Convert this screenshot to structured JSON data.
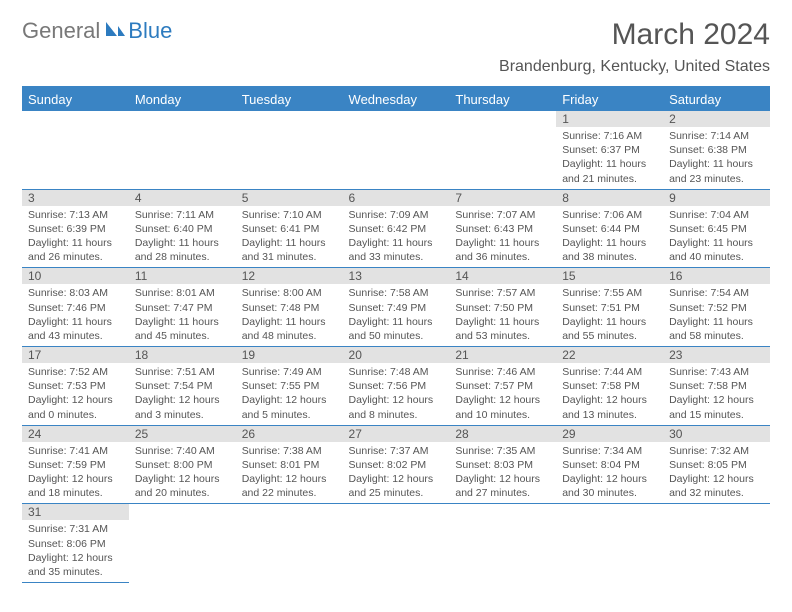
{
  "logo": {
    "text1": "General",
    "text2": "Blue"
  },
  "title": "March 2024",
  "location": "Brandenburg, Kentucky, United States",
  "colors": {
    "header_bg": "#3a84c4",
    "header_text": "#ffffff",
    "daynum_bg": "#e2e2e2",
    "body_text": "#555555",
    "rule": "#3a84c4"
  },
  "weekdays": [
    "Sunday",
    "Monday",
    "Tuesday",
    "Wednesday",
    "Thursday",
    "Friday",
    "Saturday"
  ],
  "weeks": [
    [
      null,
      null,
      null,
      null,
      null,
      {
        "n": "1",
        "l1": "Sunrise: 7:16 AM",
        "l2": "Sunset: 6:37 PM",
        "l3": "Daylight: 11 hours",
        "l4": "and 21 minutes."
      },
      {
        "n": "2",
        "l1": "Sunrise: 7:14 AM",
        "l2": "Sunset: 6:38 PM",
        "l3": "Daylight: 11 hours",
        "l4": "and 23 minutes."
      }
    ],
    [
      {
        "n": "3",
        "l1": "Sunrise: 7:13 AM",
        "l2": "Sunset: 6:39 PM",
        "l3": "Daylight: 11 hours",
        "l4": "and 26 minutes."
      },
      {
        "n": "4",
        "l1": "Sunrise: 7:11 AM",
        "l2": "Sunset: 6:40 PM",
        "l3": "Daylight: 11 hours",
        "l4": "and 28 minutes."
      },
      {
        "n": "5",
        "l1": "Sunrise: 7:10 AM",
        "l2": "Sunset: 6:41 PM",
        "l3": "Daylight: 11 hours",
        "l4": "and 31 minutes."
      },
      {
        "n": "6",
        "l1": "Sunrise: 7:09 AM",
        "l2": "Sunset: 6:42 PM",
        "l3": "Daylight: 11 hours",
        "l4": "and 33 minutes."
      },
      {
        "n": "7",
        "l1": "Sunrise: 7:07 AM",
        "l2": "Sunset: 6:43 PM",
        "l3": "Daylight: 11 hours",
        "l4": "and 36 minutes."
      },
      {
        "n": "8",
        "l1": "Sunrise: 7:06 AM",
        "l2": "Sunset: 6:44 PM",
        "l3": "Daylight: 11 hours",
        "l4": "and 38 minutes."
      },
      {
        "n": "9",
        "l1": "Sunrise: 7:04 AM",
        "l2": "Sunset: 6:45 PM",
        "l3": "Daylight: 11 hours",
        "l4": "and 40 minutes."
      }
    ],
    [
      {
        "n": "10",
        "l1": "Sunrise: 8:03 AM",
        "l2": "Sunset: 7:46 PM",
        "l3": "Daylight: 11 hours",
        "l4": "and 43 minutes."
      },
      {
        "n": "11",
        "l1": "Sunrise: 8:01 AM",
        "l2": "Sunset: 7:47 PM",
        "l3": "Daylight: 11 hours",
        "l4": "and 45 minutes."
      },
      {
        "n": "12",
        "l1": "Sunrise: 8:00 AM",
        "l2": "Sunset: 7:48 PM",
        "l3": "Daylight: 11 hours",
        "l4": "and 48 minutes."
      },
      {
        "n": "13",
        "l1": "Sunrise: 7:58 AM",
        "l2": "Sunset: 7:49 PM",
        "l3": "Daylight: 11 hours",
        "l4": "and 50 minutes."
      },
      {
        "n": "14",
        "l1": "Sunrise: 7:57 AM",
        "l2": "Sunset: 7:50 PM",
        "l3": "Daylight: 11 hours",
        "l4": "and 53 minutes."
      },
      {
        "n": "15",
        "l1": "Sunrise: 7:55 AM",
        "l2": "Sunset: 7:51 PM",
        "l3": "Daylight: 11 hours",
        "l4": "and 55 minutes."
      },
      {
        "n": "16",
        "l1": "Sunrise: 7:54 AM",
        "l2": "Sunset: 7:52 PM",
        "l3": "Daylight: 11 hours",
        "l4": "and 58 minutes."
      }
    ],
    [
      {
        "n": "17",
        "l1": "Sunrise: 7:52 AM",
        "l2": "Sunset: 7:53 PM",
        "l3": "Daylight: 12 hours",
        "l4": "and 0 minutes."
      },
      {
        "n": "18",
        "l1": "Sunrise: 7:51 AM",
        "l2": "Sunset: 7:54 PM",
        "l3": "Daylight: 12 hours",
        "l4": "and 3 minutes."
      },
      {
        "n": "19",
        "l1": "Sunrise: 7:49 AM",
        "l2": "Sunset: 7:55 PM",
        "l3": "Daylight: 12 hours",
        "l4": "and 5 minutes."
      },
      {
        "n": "20",
        "l1": "Sunrise: 7:48 AM",
        "l2": "Sunset: 7:56 PM",
        "l3": "Daylight: 12 hours",
        "l4": "and 8 minutes."
      },
      {
        "n": "21",
        "l1": "Sunrise: 7:46 AM",
        "l2": "Sunset: 7:57 PM",
        "l3": "Daylight: 12 hours",
        "l4": "and 10 minutes."
      },
      {
        "n": "22",
        "l1": "Sunrise: 7:44 AM",
        "l2": "Sunset: 7:58 PM",
        "l3": "Daylight: 12 hours",
        "l4": "and 13 minutes."
      },
      {
        "n": "23",
        "l1": "Sunrise: 7:43 AM",
        "l2": "Sunset: 7:58 PM",
        "l3": "Daylight: 12 hours",
        "l4": "and 15 minutes."
      }
    ],
    [
      {
        "n": "24",
        "l1": "Sunrise: 7:41 AM",
        "l2": "Sunset: 7:59 PM",
        "l3": "Daylight: 12 hours",
        "l4": "and 18 minutes."
      },
      {
        "n": "25",
        "l1": "Sunrise: 7:40 AM",
        "l2": "Sunset: 8:00 PM",
        "l3": "Daylight: 12 hours",
        "l4": "and 20 minutes."
      },
      {
        "n": "26",
        "l1": "Sunrise: 7:38 AM",
        "l2": "Sunset: 8:01 PM",
        "l3": "Daylight: 12 hours",
        "l4": "and 22 minutes."
      },
      {
        "n": "27",
        "l1": "Sunrise: 7:37 AM",
        "l2": "Sunset: 8:02 PM",
        "l3": "Daylight: 12 hours",
        "l4": "and 25 minutes."
      },
      {
        "n": "28",
        "l1": "Sunrise: 7:35 AM",
        "l2": "Sunset: 8:03 PM",
        "l3": "Daylight: 12 hours",
        "l4": "and 27 minutes."
      },
      {
        "n": "29",
        "l1": "Sunrise: 7:34 AM",
        "l2": "Sunset: 8:04 PM",
        "l3": "Daylight: 12 hours",
        "l4": "and 30 minutes."
      },
      {
        "n": "30",
        "l1": "Sunrise: 7:32 AM",
        "l2": "Sunset: 8:05 PM",
        "l3": "Daylight: 12 hours",
        "l4": "and 32 minutes."
      }
    ],
    [
      {
        "n": "31",
        "l1": "Sunrise: 7:31 AM",
        "l2": "Sunset: 8:06 PM",
        "l3": "Daylight: 12 hours",
        "l4": "and 35 minutes."
      },
      null,
      null,
      null,
      null,
      null,
      null
    ]
  ]
}
